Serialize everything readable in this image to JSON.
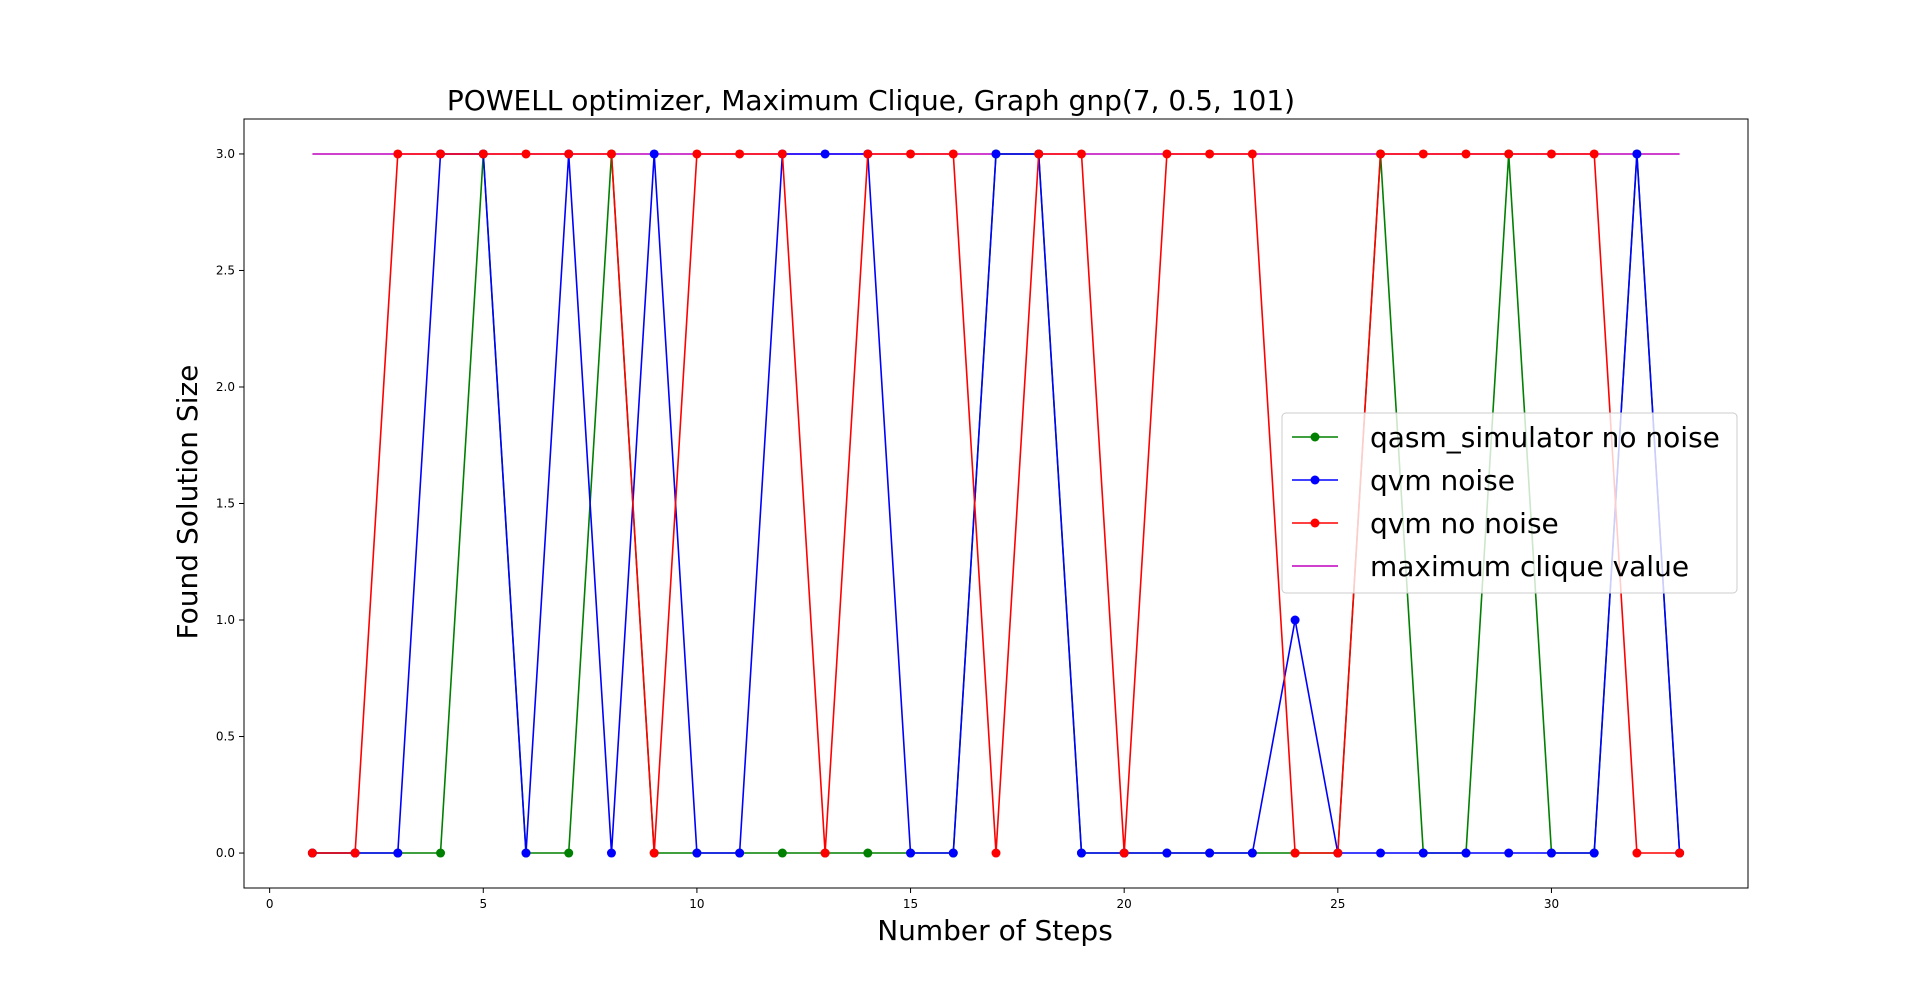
{
  "chart_data": {
    "type": "line",
    "title": "POWELL optimizer, Maximum Clique, Graph gnp(7, 0.5, 101)",
    "xlabel": "Number of Steps",
    "ylabel": "Found Solution Size",
    "xlim": [
      -0.6,
      34.6
    ],
    "ylim": [
      -0.15,
      3.15
    ],
    "xticks": [
      0,
      5,
      10,
      15,
      20,
      25,
      30
    ],
    "yticks": [
      0.0,
      0.5,
      1.0,
      1.5,
      2.0,
      2.5,
      3.0
    ],
    "x": [
      1,
      2,
      3,
      4,
      5,
      6,
      7,
      8,
      9,
      10,
      11,
      12,
      13,
      14,
      15,
      16,
      17,
      18,
      19,
      20,
      21,
      22,
      23,
      24,
      25,
      26,
      27,
      28,
      29,
      30,
      31,
      32,
      33
    ],
    "legend_position": "center-right",
    "grid": false,
    "series": [
      {
        "name": "qasm_simulator no noise",
        "color": "#008000",
        "marker": "circle",
        "values": [
          0,
          0,
          0,
          0,
          3,
          0,
          0,
          3,
          0,
          0,
          0,
          0,
          0,
          0,
          0,
          0,
          3,
          3,
          0,
          0,
          0,
          0,
          0,
          0,
          0,
          3,
          0,
          0,
          3,
          0,
          0,
          3,
          0
        ]
      },
      {
        "name": "qvm noise",
        "color": "#0000ff",
        "marker": "circle",
        "values": [
          0,
          0,
          0,
          3,
          3,
          0,
          3,
          0,
          3,
          0,
          0,
          3,
          3,
          3,
          0,
          0,
          3,
          3,
          0,
          0,
          0,
          0,
          0,
          1,
          0,
          0,
          0,
          0,
          0,
          0,
          0,
          3,
          0
        ]
      },
      {
        "name": "qvm no noise",
        "color": "#ff0000",
        "marker": "circle",
        "values": [
          0,
          0,
          3,
          3,
          3,
          3,
          3,
          3,
          0,
          3,
          3,
          3,
          0,
          3,
          3,
          3,
          0,
          3,
          3,
          0,
          3,
          3,
          3,
          0,
          0,
          3,
          3,
          3,
          3,
          3,
          3,
          0,
          0
        ]
      },
      {
        "name": "maximum clique value",
        "color": "#bf00bf",
        "marker": "none",
        "values": [
          3,
          3,
          3,
          3,
          3,
          3,
          3,
          3,
          3,
          3,
          3,
          3,
          3,
          3,
          3,
          3,
          3,
          3,
          3,
          3,
          3,
          3,
          3,
          3,
          3,
          3,
          3,
          3,
          3,
          3,
          3,
          3,
          3
        ]
      }
    ]
  }
}
